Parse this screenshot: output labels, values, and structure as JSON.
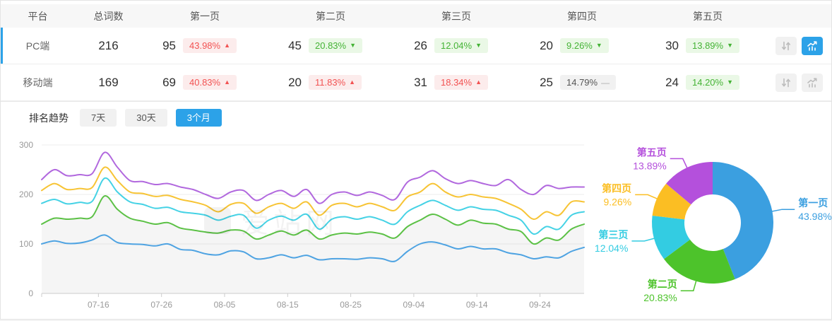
{
  "colors": {
    "accent_blue": "#2CA2E8",
    "up_red": "#F25252",
    "down_green": "#44B335",
    "flat_gray": "#999999"
  },
  "table": {
    "headers": [
      "平台",
      "总词数",
      "第一页",
      "第二页",
      "第三页",
      "第四页",
      "第五页"
    ],
    "rows": [
      {
        "platform": "PC端",
        "total": "216",
        "selected": true,
        "chart_active": true,
        "pages": [
          {
            "count": "95",
            "pct": "43.98%",
            "dir": "up"
          },
          {
            "count": "45",
            "pct": "20.83%",
            "dir": "down"
          },
          {
            "count": "26",
            "pct": "12.04%",
            "dir": "down"
          },
          {
            "count": "20",
            "pct": "9.26%",
            "dir": "down"
          },
          {
            "count": "30",
            "pct": "13.89%",
            "dir": "down"
          }
        ]
      },
      {
        "platform": "移动端",
        "total": "169",
        "selected": false,
        "chart_active": false,
        "pages": [
          {
            "count": "69",
            "pct": "40.83%",
            "dir": "up"
          },
          {
            "count": "20",
            "pct": "11.83%",
            "dir": "up"
          },
          {
            "count": "31",
            "pct": "18.34%",
            "dir": "up"
          },
          {
            "count": "25",
            "pct": "14.79%",
            "dir": "flat"
          },
          {
            "count": "24",
            "pct": "14.20%",
            "dir": "down"
          }
        ]
      }
    ]
  },
  "trend": {
    "label": "排名趋势",
    "tabs": [
      {
        "label": "7天",
        "active": false
      },
      {
        "label": "30天",
        "active": false
      },
      {
        "label": "3个月",
        "active": true
      }
    ]
  },
  "watermark": "爱站网",
  "chart_data": [
    {
      "type": "line",
      "name": "排名趋势(3个月, PC端)",
      "x_start": "07-07",
      "x_end": "10-01",
      "point_interval_days": 2,
      "x_total_days": 86,
      "x_tick_labels": [
        "07-16",
        "07-26",
        "08-05",
        "08-15",
        "08-25",
        "09-04",
        "09-14",
        "09-24"
      ],
      "x_tick_day_offsets": [
        9,
        19,
        29,
        39,
        49,
        59,
        69,
        79
      ],
      "ylim": [
        0,
        300
      ],
      "y_ticks": [
        0,
        100,
        200,
        300
      ],
      "grid": true,
      "stacked_cumulative": true,
      "area_fill_under_series": "第二页",
      "series": [
        {
          "name": "第一页",
          "color": "#4EA3E2",
          "values": [
            100,
            106,
            101,
            102,
            108,
            118,
            103,
            100,
            99,
            96,
            100,
            89,
            87,
            80,
            78,
            86,
            84,
            70,
            72,
            78,
            72,
            77,
            68,
            70,
            70,
            69,
            72,
            70,
            65,
            85,
            100,
            104,
            98,
            90,
            95,
            90,
            90,
            82,
            78,
            70,
            74,
            72,
            85,
            93
          ]
        },
        {
          "name": "第二页",
          "color": "#5CC146",
          "values": [
            140,
            152,
            150,
            152,
            155,
            197,
            170,
            152,
            146,
            140,
            143,
            132,
            128,
            124,
            122,
            128,
            126,
            110,
            118,
            126,
            118,
            128,
            110,
            118,
            122,
            120,
            124,
            120,
            112,
            135,
            148,
            160,
            150,
            138,
            148,
            142,
            140,
            130,
            125,
            100,
            112,
            108,
            130,
            140
          ]
        },
        {
          "name": "第三页",
          "color": "#45D2E5",
          "values": [
            182,
            190,
            181,
            184,
            186,
            233,
            205,
            185,
            180,
            172,
            174,
            165,
            162,
            158,
            148,
            156,
            158,
            132,
            148,
            156,
            148,
            160,
            130,
            150,
            155,
            150,
            155,
            148,
            140,
            165,
            178,
            188,
            178,
            168,
            175,
            170,
            168,
            158,
            148,
            120,
            135,
            130,
            158,
            165
          ]
        },
        {
          "name": "第四页",
          "color": "#F7C435",
          "values": [
            208,
            222,
            210,
            212,
            214,
            255,
            228,
            205,
            202,
            196,
            198,
            190,
            185,
            178,
            165,
            180,
            182,
            162,
            175,
            182,
            172,
            185,
            158,
            178,
            182,
            175,
            182,
            175,
            168,
            195,
            205,
            222,
            205,
            195,
            200,
            195,
            192,
            182,
            170,
            150,
            165,
            158,
            185,
            185
          ]
        },
        {
          "name": "第五页",
          "color": "#B168DE",
          "values": [
            230,
            250,
            238,
            240,
            242,
            285,
            255,
            228,
            226,
            220,
            222,
            215,
            210,
            200,
            192,
            205,
            208,
            188,
            200,
            208,
            196,
            210,
            182,
            200,
            205,
            198,
            205,
            198,
            190,
            225,
            235,
            248,
            232,
            222,
            228,
            222,
            218,
            230,
            210,
            200,
            218,
            212,
            215,
            215
          ]
        }
      ]
    },
    {
      "type": "pie",
      "donut": true,
      "labels": [
        "第一页",
        "第二页",
        "第三页",
        "第四页",
        "第五页"
      ],
      "values": [
        43.98,
        20.83,
        12.04,
        9.26,
        13.89
      ],
      "unit": "%",
      "colors": [
        "#3B9FE0",
        "#4DC32B",
        "#33CCE2",
        "#FBBE23",
        "#B450DC"
      ],
      "start_angle": "top",
      "direction": "clockwise",
      "label_position": "outside"
    }
  ]
}
